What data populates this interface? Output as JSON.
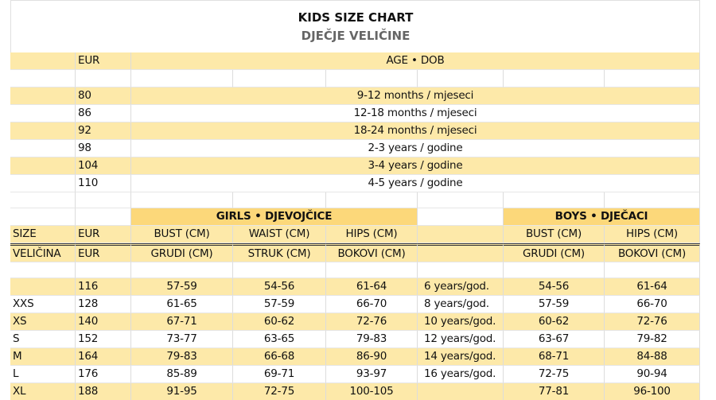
{
  "header": {
    "title": "KIDS SIZE CHART",
    "subtitle": "DJEČJE VELIČINE"
  },
  "age_table": {
    "headers": [
      "EUR",
      "AGE • DOB"
    ],
    "rows": [
      [
        "80",
        "9-12 months / mjeseci"
      ],
      [
        "86",
        "12-18 months / mjeseci"
      ],
      [
        "92",
        "18-24 months / mjeseci"
      ],
      [
        "98",
        "2-3 years / godine"
      ],
      [
        "104",
        "3-4 years / godine"
      ],
      [
        "110",
        "4-5 years / godine"
      ]
    ]
  },
  "size_table": {
    "groups": [
      "GIRLS • DJEVOJČICE",
      "BOYS • DJEČACI"
    ],
    "header_rows": [
      {
        "size": "SIZE",
        "eur": "EUR",
        "girls": [
          "BUST (CM)",
          "WAIST (CM)",
          "HIPS (CM)"
        ],
        "boys": [
          "BUST (CM)",
          "HIPS (CM)"
        ]
      },
      {
        "size": "VELIČINA",
        "eur": "EUR",
        "girls": [
          "GRUDI (CM)",
          "STRUK (CM)",
          "BOKOVI (CM)"
        ],
        "boys": [
          "GRUDI (CM)",
          "BOKOVI (CM)"
        ]
      }
    ],
    "rows": [
      {
        "eur": "116",
        "girls": [
          "57-59",
          "54-56",
          "61-64"
        ],
        "age": "6 years/god.",
        "boys": [
          "54-56",
          "61-64"
        ]
      },
      {
        "size": "XXS",
        "eur": "128",
        "girls": [
          "61-65",
          "57-59",
          "66-70"
        ],
        "age": "8 years/god.",
        "boys": [
          "57-59",
          "66-70"
        ]
      },
      {
        "size": "XS",
        "eur": "140",
        "girls": [
          "67-71",
          "60-62",
          "72-76"
        ],
        "age": "10 years/god.",
        "boys": [
          "60-62",
          "72-76"
        ]
      },
      {
        "size": "S",
        "eur": "152",
        "girls": [
          "73-77",
          "63-65",
          "79-83"
        ],
        "age": "12 years/god.",
        "boys": [
          "63-67",
          "79-82"
        ]
      },
      {
        "size": "M",
        "eur": "164",
        "girls": [
          "79-83",
          "66-68",
          "86-90"
        ],
        "age": "14 years/god.",
        "boys": [
          "68-71",
          "84-88"
        ]
      },
      {
        "size": "L",
        "eur": "176",
        "girls": [
          "85-89",
          "69-71",
          "93-97"
        ],
        "age": "16 years/god.",
        "boys": [
          "72-75",
          "90-94"
        ]
      },
      {
        "size": "XL",
        "eur": "188",
        "girls": [
          "91-95",
          "72-75",
          "100-105"
        ],
        "age": "",
        "boys": [
          "77-81",
          "96-100"
        ]
      }
    ]
  }
}
